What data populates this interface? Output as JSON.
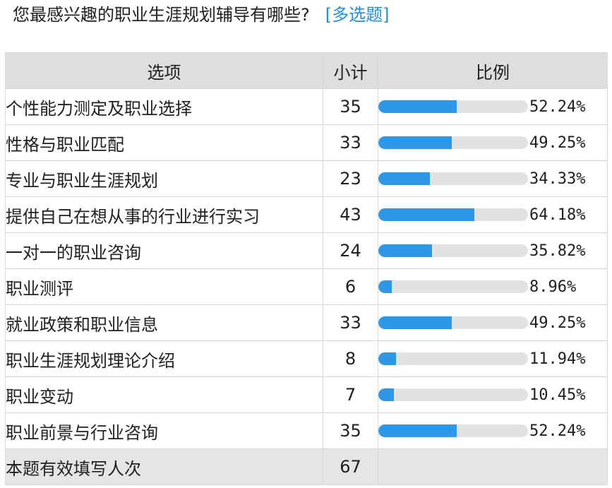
{
  "question": {
    "title": "您最感兴趣的职业生涯规划辅导有哪些?",
    "tag": "[多选题]"
  },
  "table": {
    "headers": {
      "option": "选项",
      "count": "小计",
      "ratio": "比例"
    },
    "rows": [
      {
        "label": "个性能力测定及职业选择",
        "count": "35",
        "percent": "52.24%",
        "fraction": 0.5224
      },
      {
        "label": "性格与职业匹配",
        "count": "33",
        "percent": "49.25%",
        "fraction": 0.4925
      },
      {
        "label": "专业与职业生涯规划",
        "count": "23",
        "percent": "34.33%",
        "fraction": 0.3433
      },
      {
        "label": "提供自己在想从事的行业进行实习",
        "count": "43",
        "percent": "64.18%",
        "fraction": 0.6418
      },
      {
        "label": "一对一的职业咨询",
        "count": "24",
        "percent": "35.82%",
        "fraction": 0.3582
      },
      {
        "label": "职业测评",
        "count": "6",
        "percent": "8.96%",
        "fraction": 0.0896
      },
      {
        "label": "就业政策和职业信息",
        "count": "33",
        "percent": "49.25%",
        "fraction": 0.4925
      },
      {
        "label": "职业生涯规划理论介绍",
        "count": "8",
        "percent": "11.94%",
        "fraction": 0.1194
      },
      {
        "label": "职业变动",
        "count": "7",
        "percent": "10.45%",
        "fraction": 0.1045
      },
      {
        "label": "职业前景与行业咨询",
        "count": "35",
        "percent": "52.24%",
        "fraction": 0.5224
      }
    ],
    "total": {
      "label": "本题有效填写人次",
      "count": "67"
    }
  },
  "colors": {
    "bar_fill": "#2f97e8",
    "bar_track": "#e2e2e2",
    "tag": "#1e8fe1",
    "header_bg": "#dedede"
  }
}
